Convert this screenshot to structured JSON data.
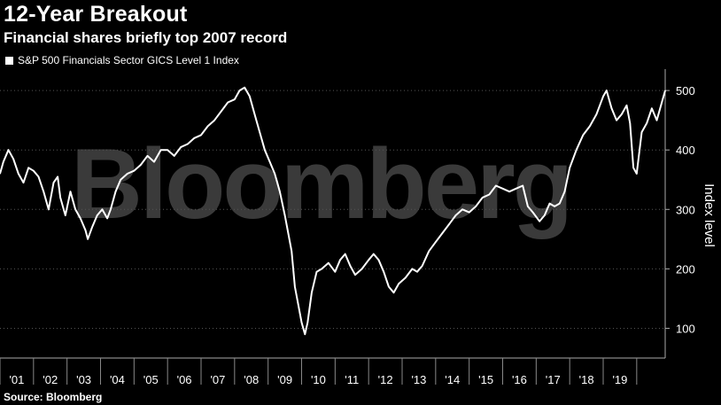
{
  "header": {
    "title": "12-Year Breakout",
    "subtitle": "Financial shares briefly top 2007 record"
  },
  "legend": {
    "label": "S&P 500 Financials Sector GICS Level 1 Index"
  },
  "watermark": "Bloomberg",
  "footer": {
    "source": "Source: Bloomberg"
  },
  "colors": {
    "background": "#000000",
    "line": "#ffffff",
    "grid": "#555555",
    "watermark": "#3a3a3a"
  },
  "chart_data": {
    "type": "line",
    "title": "12-Year Breakout",
    "subtitle": "Financial shares briefly top 2007 record",
    "xlabel": "",
    "ylabel": "Index level",
    "xlim": [
      2000.0,
      2019.85
    ],
    "ylim": [
      50,
      530
    ],
    "y_ticks": [
      100,
      200,
      300,
      400,
      500
    ],
    "x_tick_labels": [
      "'01",
      "'02",
      "'03",
      "'04",
      "'05",
      "'06",
      "'07",
      "'08",
      "'09",
      "'10",
      "'11",
      "'12",
      "'13",
      "'14",
      "'15",
      "'16",
      "'17",
      "'18",
      "'19"
    ],
    "grid": "horizontal dotted",
    "legend_position": "top-left",
    "series": [
      {
        "name": "S&P 500 Financials Sector GICS Level 1 Index",
        "x": [
          2000.0,
          2000.1,
          2000.25,
          2000.4,
          2000.55,
          2000.7,
          2000.85,
          2001.0,
          2001.15,
          2001.3,
          2001.45,
          2001.6,
          2001.72,
          2001.8,
          2001.95,
          2002.1,
          2002.25,
          2002.4,
          2002.55,
          2002.62,
          2002.75,
          2002.9,
          2003.05,
          2003.2,
          2003.3,
          2003.45,
          2003.6,
          2003.8,
          2004.0,
          2004.2,
          2004.4,
          2004.6,
          2004.8,
          2005.0,
          2005.2,
          2005.4,
          2005.6,
          2005.8,
          2006.0,
          2006.2,
          2006.4,
          2006.6,
          2006.8,
          2007.0,
          2007.15,
          2007.3,
          2007.45,
          2007.6,
          2007.75,
          2007.9,
          2008.05,
          2008.2,
          2008.35,
          2008.5,
          2008.6,
          2008.7,
          2008.8,
          2008.9,
          2009.0,
          2009.1,
          2009.18,
          2009.3,
          2009.45,
          2009.6,
          2009.8,
          2010.0,
          2010.15,
          2010.3,
          2010.45,
          2010.6,
          2010.8,
          2011.0,
          2011.15,
          2011.3,
          2011.45,
          2011.6,
          2011.75,
          2011.9,
          2012.1,
          2012.3,
          2012.45,
          2012.6,
          2012.8,
          2013.0,
          2013.2,
          2013.4,
          2013.6,
          2013.8,
          2014.0,
          2014.2,
          2014.4,
          2014.6,
          2014.8,
          2015.0,
          2015.2,
          2015.4,
          2015.6,
          2015.75,
          2015.9,
          2016.1,
          2016.25,
          2016.4,
          2016.55,
          2016.7,
          2016.85,
          2017.0,
          2017.2,
          2017.4,
          2017.6,
          2017.8,
          2018.0,
          2018.1,
          2018.25,
          2018.4,
          2018.55,
          2018.7,
          2018.8,
          2018.9,
          2019.0,
          2019.15,
          2019.3,
          2019.45,
          2019.6,
          2019.75,
          2019.85
        ],
        "values": [
          360,
          380,
          400,
          385,
          360,
          345,
          370,
          365,
          355,
          330,
          300,
          345,
          355,
          320,
          290,
          330,
          300,
          285,
          265,
          250,
          270,
          290,
          300,
          285,
          300,
          330,
          350,
          360,
          365,
          375,
          390,
          380,
          400,
          400,
          390,
          405,
          410,
          420,
          425,
          440,
          450,
          465,
          480,
          485,
          500,
          505,
          490,
          460,
          430,
          400,
          380,
          360,
          330,
          290,
          260,
          230,
          170,
          140,
          110,
          90,
          110,
          160,
          195,
          200,
          210,
          195,
          215,
          225,
          205,
          190,
          200,
          215,
          225,
          215,
          195,
          170,
          160,
          175,
          185,
          200,
          195,
          205,
          230,
          245,
          260,
          275,
          290,
          300,
          295,
          305,
          320,
          325,
          340,
          335,
          330,
          335,
          340,
          305,
          295,
          280,
          290,
          310,
          305,
          310,
          330,
          370,
          400,
          425,
          440,
          460,
          490,
          500,
          470,
          450,
          460,
          475,
          445,
          370,
          360,
          430,
          445,
          470,
          450,
          480,
          500
        ]
      }
    ]
  }
}
